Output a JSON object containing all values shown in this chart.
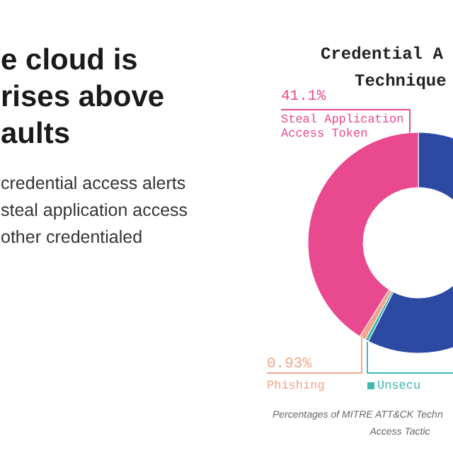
{
  "chart_data": {
    "type": "donut",
    "title": "Credential A\nTechnique",
    "categories": [
      null,
      "Unsecu",
      "Phishing",
      "Steal Application\nAccess Token"
    ],
    "values": [
      57.47,
      0.5,
      0.93,
      41.1
    ],
    "colors": [
      "#2d4aa3",
      "#3fb8b0",
      "#f2a58e",
      "#e9498f"
    ],
    "value_labels": [
      null,
      null,
      "0.93%",
      "41.1%"
    ],
    "annotations": [
      "e cloud is\nrises above\naults",
      "credential access alerts\nsteal application access\nother credentialed",
      "Percentages of MITRE ATT&CK Techn\nAccess Tactic"
    ]
  }
}
